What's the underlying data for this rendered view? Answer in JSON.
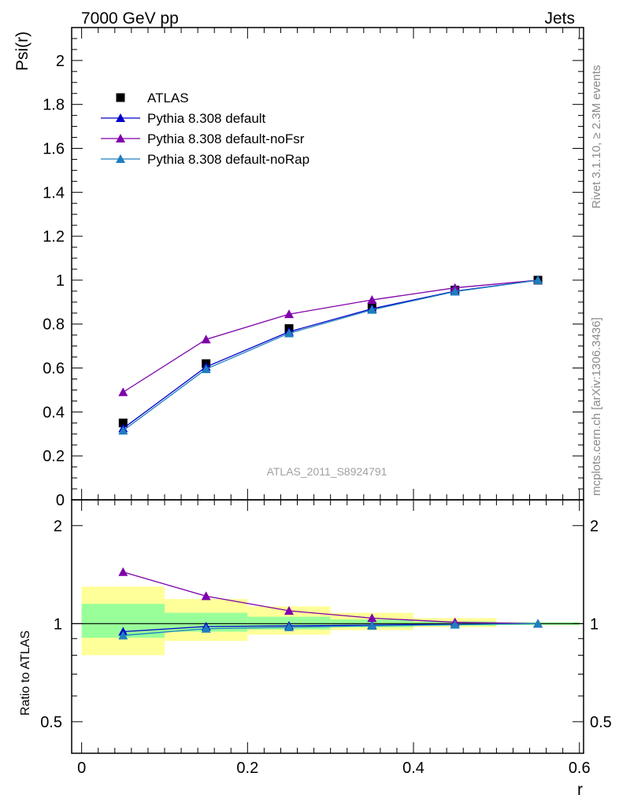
{
  "header": {
    "left": "7000 GeV pp",
    "right": "Jets"
  },
  "side_labels": {
    "rivet": "Rivet 3.1.10, ≥ 2.3M events",
    "mcplots": "mcplots.cern.ch [arXiv:1306.3436]"
  },
  "watermark": "ATLAS_2011_S8924791",
  "colors": {
    "atlas": "#000000",
    "default": "#0000cc",
    "noFsr": "#7f00aa",
    "noRap": "#1f7fbf",
    "band_inner": "#99ff99",
    "band_outer": "#ffff99"
  },
  "chart_data": [
    {
      "type": "line",
      "ylabel": "Psi(r)",
      "xlim": [
        -0.012,
        0.605
      ],
      "ylim": [
        0,
        2.15
      ],
      "yticks": [
        {
          "v": 0,
          "label": "0"
        },
        {
          "v": 0.2,
          "label": "0.2"
        },
        {
          "v": 0.4,
          "label": "0.4"
        },
        {
          "v": 0.6,
          "label": "0.6"
        },
        {
          "v": 0.8,
          "label": "0.8"
        },
        {
          "v": 1.0,
          "label": "1"
        },
        {
          "v": 1.2,
          "label": "1.2"
        },
        {
          "v": 1.4,
          "label": "1.4"
        },
        {
          "v": 1.6,
          "label": "1.6"
        },
        {
          "v": 1.8,
          "label": "1.8"
        },
        {
          "v": 2.0,
          "label": "2"
        }
      ],
      "x": [
        0.05,
        0.15,
        0.25,
        0.35,
        0.45,
        0.55
      ],
      "series": [
        {
          "name": "ATLAS",
          "marker": "square",
          "values": [
            0.35,
            0.62,
            0.78,
            0.88,
            0.955,
            1.0
          ]
        },
        {
          "name": "Pythia 8.308 default",
          "marker": "triangle",
          "values": [
            0.325,
            0.605,
            0.765,
            0.87,
            0.95,
            1.0
          ]
        },
        {
          "name": "Pythia 8.308 default-noFsr",
          "marker": "triangle",
          "values": [
            0.49,
            0.73,
            0.845,
            0.91,
            0.965,
            1.0
          ]
        },
        {
          "name": "Pythia 8.308 default-noRap",
          "marker": "triangle",
          "values": [
            0.315,
            0.595,
            0.758,
            0.865,
            0.948,
            1.0
          ]
        }
      ],
      "legend": "top-left"
    },
    {
      "type": "line",
      "ylabel": "Ratio to ATLAS",
      "xlabel": "r",
      "xlim": [
        -0.012,
        0.605
      ],
      "ylim": [
        0.4,
        2.4
      ],
      "log_y": true,
      "yticks": [
        {
          "v": 0.5,
          "label": "0.5"
        },
        {
          "v": 1,
          "label": "1"
        },
        {
          "v": 2,
          "label": "2"
        }
      ],
      "xticks": [
        {
          "v": 0,
          "label": "0"
        },
        {
          "v": 0.2,
          "label": "0.2"
        },
        {
          "v": 0.4,
          "label": "0.4"
        },
        {
          "v": 0.6,
          "label": "0.6"
        }
      ],
      "bins": [
        [
          0.0,
          0.1
        ],
        [
          0.1,
          0.2
        ],
        [
          0.2,
          0.3
        ],
        [
          0.3,
          0.4
        ],
        [
          0.4,
          0.5
        ],
        [
          0.5,
          0.6
        ]
      ],
      "band_inner": [
        [
          0.905,
          1.15
        ],
        [
          0.945,
          1.08
        ],
        [
          0.96,
          1.05
        ],
        [
          0.975,
          1.03
        ],
        [
          0.985,
          1.015
        ],
        [
          0.99,
          1.01
        ]
      ],
      "band_outer": [
        [
          0.8,
          1.3
        ],
        [
          0.885,
          1.19
        ],
        [
          0.925,
          1.13
        ],
        [
          0.955,
          1.08
        ],
        [
          0.975,
          1.04
        ],
        [
          0.99,
          1.01
        ]
      ],
      "x": [
        0.05,
        0.15,
        0.25,
        0.35,
        0.45,
        0.55
      ],
      "series": [
        {
          "name": "Pythia 8.308 default",
          "values": [
            0.945,
            0.98,
            0.985,
            0.99,
            0.995,
            1.0
          ]
        },
        {
          "name": "Pythia 8.308 default-noFsr",
          "values": [
            1.44,
            1.215,
            1.095,
            1.04,
            1.01,
            1.0
          ]
        },
        {
          "name": "Pythia 8.308 default-noRap",
          "values": [
            0.92,
            0.965,
            0.975,
            0.985,
            0.993,
            1.0
          ]
        }
      ]
    }
  ]
}
